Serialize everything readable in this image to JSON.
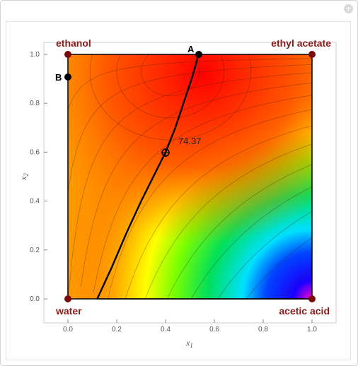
{
  "window": {
    "close_glyph": "+"
  },
  "plot": {
    "corners": {
      "top_left": "ethanol",
      "top_right": "ethyl acetate",
      "bottom_left": "water",
      "bottom_right": "acetic acid"
    },
    "points": {
      "a_label": "A",
      "b_label": "B"
    },
    "value_label": "74.37",
    "x_axis_label": "x",
    "x_axis_subscript": "1",
    "y_axis_label": "x",
    "y_axis_subscript": "2",
    "x_ticks": [
      "0.0",
      "0.2",
      "0.4",
      "0.6",
      "0.8",
      "1.0"
    ],
    "y_ticks": [
      "0.0",
      "0.2",
      "0.4",
      "0.6",
      "0.8",
      "1.0"
    ],
    "corner_color": "#8b1a1a"
  },
  "chart_data": {
    "type": "heatmap",
    "xlabel": "x1",
    "ylabel": "x2",
    "xlim": [
      -0.07,
      1.07
    ],
    "ylim": [
      -0.05,
      1.05
    ],
    "corners": [
      {
        "name": "ethanol",
        "x": 0,
        "y": 1
      },
      {
        "name": "ethyl acetate",
        "x": 1,
        "y": 1
      },
      {
        "name": "water",
        "x": 0,
        "y": 0
      },
      {
        "name": "acetic acid",
        "x": 1,
        "y": 0
      }
    ],
    "points": [
      {
        "name": "A",
        "x": 0.535,
        "y": 1.0
      },
      {
        "name": "B",
        "x": 0.0,
        "y": 0.91
      },
      {
        "name": "74.37",
        "x": 0.4,
        "y": 0.6
      }
    ],
    "curve": {
      "x": [
        0.12,
        0.18,
        0.24,
        0.3,
        0.36,
        0.4,
        0.44,
        0.48,
        0.51,
        0.535
      ],
      "y": [
        0.0,
        0.13,
        0.27,
        0.4,
        0.52,
        0.6,
        0.7,
        0.82,
        0.91,
        1.0
      ]
    },
    "max_value": 74.37,
    "colormap": "rainbow"
  }
}
